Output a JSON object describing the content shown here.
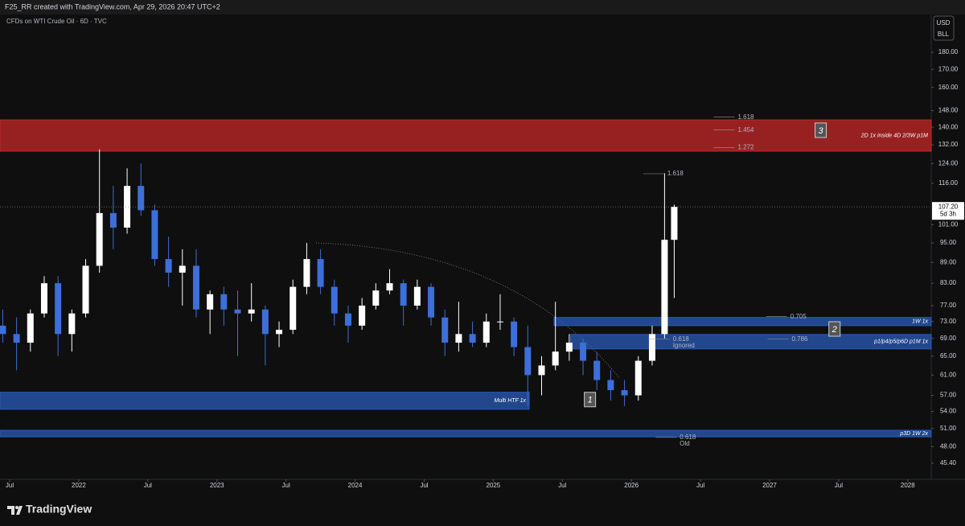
{
  "header": {
    "caption": "F25_RR created with TradingView.com, Apr 29, 2026 20:47 UTC+2",
    "symbol": "CFDs on WTI Crude Oil · 6D · TVC"
  },
  "chart_data": {
    "type": "candlestick",
    "log_scale": true,
    "up_color": "#ffffff",
    "down_color": "#3d6fd8",
    "currency": "USD",
    "unit": "BLL",
    "xlim": [
      2021.43,
      2028.17
    ],
    "ylim": [
      43.36,
      203.2
    ],
    "xticks": [
      {
        "value": 2021.5,
        "label": "Jul"
      },
      2022,
      {
        "value": 2022.5,
        "label": "Jul"
      },
      2023,
      {
        "value": 2023.5,
        "label": "Jul"
      },
      2024,
      {
        "value": 2024.5,
        "label": "Jul"
      },
      2025,
      {
        "value": 2025.5,
        "label": "Jul"
      },
      2026,
      {
        "value": 2026.5,
        "label": "Jul"
      },
      2027,
      {
        "value": 2027.5,
        "label": "Jul"
      },
      2028
    ],
    "yticks": [
      {
        "value": 180,
        "label": "180.00"
      },
      {
        "value": 170,
        "label": "170.00"
      },
      {
        "value": 160,
        "label": "160.00"
      },
      {
        "value": 148,
        "label": "148.00"
      },
      {
        "value": 140,
        "label": "140.00"
      },
      {
        "value": 132,
        "label": "132.00"
      },
      {
        "value": 124,
        "label": "124.00"
      },
      {
        "value": 116,
        "label": "116.00"
      },
      {
        "value": 101,
        "label": "101.00"
      },
      {
        "value": 95,
        "label": "95.00"
      },
      {
        "value": 89,
        "label": "89.00"
      },
      {
        "value": 83,
        "label": "83.00"
      },
      {
        "value": 77,
        "label": "77.00"
      },
      {
        "value": 73,
        "label": "73.00"
      },
      {
        "value": 69,
        "label": "69.00"
      },
      {
        "value": 65,
        "label": "65.00"
      },
      {
        "value": 61,
        "label": "61.00"
      },
      {
        "value": 57,
        "label": "57.00"
      },
      {
        "value": 54,
        "label": "54.00"
      },
      {
        "value": 51,
        "label": "51.00"
      },
      {
        "value": 48,
        "label": "48.00"
      },
      {
        "value": 45.4,
        "label": "45.40"
      }
    ],
    "x": [
      2021.45,
      2021.55,
      2021.65,
      2021.75,
      2021.85,
      2021.95,
      2022.05,
      2022.15,
      2022.25,
      2022.35,
      2022.45,
      2022.55,
      2022.65,
      2022.75,
      2022.85,
      2022.95,
      2023.05,
      2023.15,
      2023.25,
      2023.35,
      2023.45,
      2023.55,
      2023.65,
      2023.75,
      2023.85,
      2023.95,
      2024.05,
      2024.15,
      2024.25,
      2024.35,
      2024.45,
      2024.55,
      2024.65,
      2024.75,
      2024.85,
      2024.95,
      2025.05,
      2025.15,
      2025.25,
      2025.35,
      2025.45,
      2025.55,
      2025.65,
      2025.75,
      2025.85,
      2025.95,
      2026.05,
      2026.15,
      2026.24,
      2026.31
    ],
    "open": [
      72,
      70,
      68,
      75,
      83,
      70,
      75,
      88,
      105,
      100,
      115,
      106,
      90,
      86,
      88,
      76,
      80,
      76,
      75,
      76,
      70,
      71,
      82,
      90,
      82,
      75,
      72,
      77,
      81,
      83,
      77,
      82,
      74,
      68,
      70,
      68,
      73,
      73,
      67,
      61,
      63,
      66,
      68,
      64,
      60,
      58,
      57,
      64,
      70,
      96
    ],
    "high": [
      76,
      74,
      76,
      85,
      85,
      76,
      90,
      130,
      115,
      122,
      124,
      108,
      97,
      93,
      93,
      81,
      82,
      81,
      83,
      77,
      73,
      84,
      95,
      93,
      84,
      77,
      79,
      83,
      87,
      84,
      84,
      83,
      76,
      78,
      73,
      75,
      80,
      74,
      72,
      65,
      78,
      70,
      69,
      66,
      62,
      60,
      65,
      72,
      120,
      108
    ],
    "low": [
      68,
      62,
      66,
      74,
      65,
      66,
      74,
      86,
      93,
      98,
      104,
      88,
      82,
      77,
      74,
      70,
      72,
      65,
      73,
      63,
      67,
      70,
      80,
      80,
      72,
      68,
      71,
      76,
      80,
      72,
      76,
      72,
      65,
      66,
      67,
      67,
      71,
      65,
      55,
      57,
      62,
      64,
      61,
      58,
      56,
      55,
      56,
      63,
      69,
      79
    ],
    "close": [
      70,
      68,
      75,
      83,
      70,
      75,
      88,
      105,
      100,
      115,
      106,
      90,
      86,
      88,
      76,
      80,
      76,
      75,
      76,
      70,
      71,
      82,
      90,
      82,
      75,
      72,
      77,
      81,
      83,
      77,
      82,
      74,
      68,
      70,
      68,
      73,
      73,
      67,
      61,
      63,
      66,
      68,
      64,
      60,
      58,
      57,
      64,
      70,
      96,
      107.2
    ],
    "last_price": {
      "value": 107.2,
      "label": "107.20",
      "countdown": "5d 3h"
    },
    "zones": [
      {
        "name": "2D 1x inside 4D 2/3W p1M",
        "low": 129.2,
        "high": 143.5,
        "x": [
          2021.43,
          2028.17
        ],
        "color": "#c62828"
      },
      {
        "name": "1W 1x",
        "low": 72.0,
        "high": 74.0,
        "x": [
          2025.44,
          2028.17
        ],
        "color": "#2a5bb8"
      },
      {
        "name": "p1/p4/p5/p6D p1M 1x",
        "low": 66.6,
        "high": 69.9,
        "x": [
          2025.56,
          2028.17
        ],
        "color": "#2a5bb8"
      },
      {
        "name": "Multi HTF 1x",
        "low": 54.4,
        "high": 57.6,
        "x": [
          2021.43,
          2025.26
        ],
        "color": "#2a5bb8"
      },
      {
        "name": "p3D 1W 2x",
        "low": 49.6,
        "high": 50.7,
        "x": [
          2021.43,
          2028.17
        ],
        "color": "#2a5bb8"
      }
    ],
    "fib_levels": [
      {
        "label": "1.618",
        "price": 144.8,
        "x": 2026.77
      },
      {
        "label": "1.454",
        "price": 138.7,
        "x": 2026.77
      },
      {
        "label": "1.272",
        "price": 130.8,
        "x": 2026.77
      },
      {
        "label": "1.618",
        "price": 119.8,
        "x": 2026.26
      },
      {
        "label": "0.705",
        "price": 74.2,
        "x": 2027.15
      },
      {
        "label": "0.618",
        "note": "Ignored",
        "price": 68.8,
        "x": 2026.3
      },
      {
        "label": "0.786",
        "price": 68.8,
        "x": 2027.16
      },
      {
        "label": "0.618",
        "note": "Old",
        "price": 49.5,
        "x": 2026.35
      }
    ],
    "boxes": [
      {
        "label": "1",
        "x": 2025.7,
        "price": 56.2
      },
      {
        "label": "2",
        "x": 2027.47,
        "price": 71.2
      },
      {
        "label": "3",
        "x": 2027.37,
        "price": 138.6
      }
    ]
  },
  "footer": {
    "brand": "TradingView"
  }
}
